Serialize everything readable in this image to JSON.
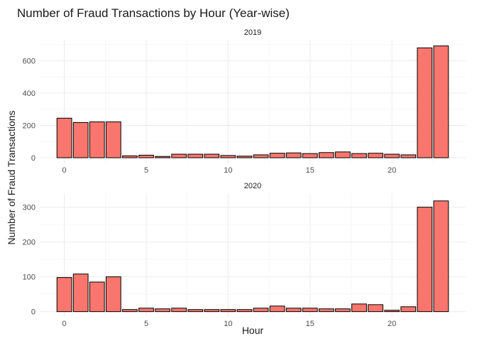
{
  "chart_data": {
    "type": "bar",
    "title": "Number of Fraud Transactions by Hour (Year-wise)",
    "xlabel": "Hour",
    "ylabel": "Number of Fraud Transactions",
    "x": [
      0,
      1,
      2,
      3,
      4,
      5,
      6,
      7,
      8,
      9,
      10,
      11,
      12,
      13,
      14,
      15,
      16,
      17,
      18,
      19,
      20,
      21,
      22,
      23
    ],
    "x_ticks": [
      "0",
      "5",
      "10",
      "15",
      "20"
    ],
    "xlim": [
      -1.5,
      24.5
    ],
    "grid": true,
    "bar_fill": "#f8766d",
    "bar_stroke": "#000000",
    "panels": [
      {
        "strip": "2019",
        "ylim": [
          -35,
          730
        ],
        "y_ticks": [
          "0",
          "200",
          "400",
          "600"
        ],
        "values": [
          245,
          218,
          222,
          222,
          12,
          16,
          8,
          22,
          22,
          22,
          14,
          10,
          18,
          28,
          30,
          26,
          32,
          36,
          26,
          28,
          22,
          18,
          680,
          692
        ]
      },
      {
        "strip": "2020",
        "ylim": [
          -15,
          340
        ],
        "y_ticks": [
          "0",
          "100",
          "200",
          "300"
        ],
        "values": [
          98,
          108,
          85,
          100,
          6,
          10,
          8,
          10,
          6,
          6,
          6,
          6,
          10,
          16,
          10,
          10,
          8,
          8,
          22,
          20,
          4,
          14,
          300,
          318
        ]
      }
    ]
  }
}
